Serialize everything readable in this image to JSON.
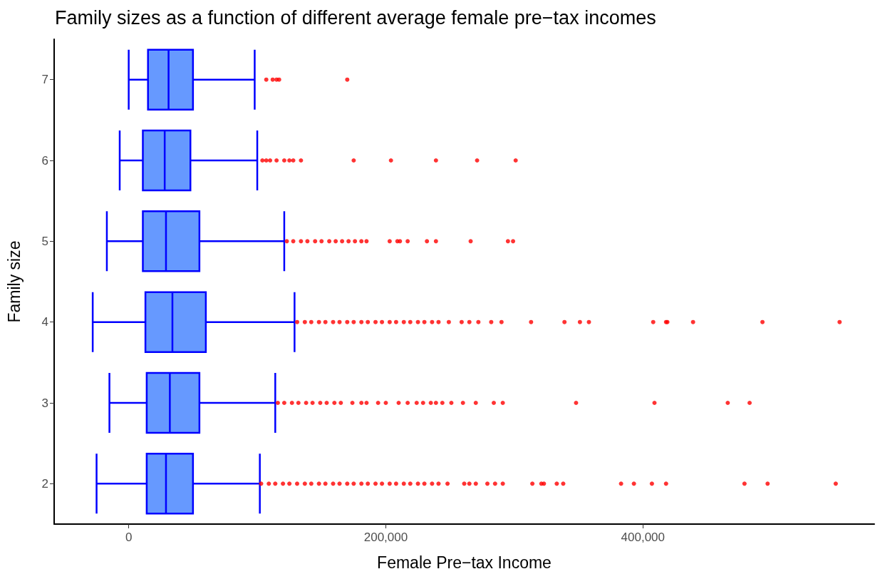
{
  "chart_data": {
    "type": "box",
    "title": "Family sizes as a function of different average female pre−tax incomes",
    "xlabel": "Female Pre−tax Income",
    "ylabel": "Family size",
    "orientation": "horizontal",
    "categories": [
      "7",
      "6",
      "5",
      "4",
      "3",
      "2"
    ],
    "xlim": [
      -58000,
      580000
    ],
    "xticks": [
      0,
      {
        "value": 200000,
        "label": "200,000"
      },
      {
        "value": 400000,
        "label": "400,000"
      }
    ],
    "grid": false,
    "marker": "circle",
    "series": [
      {
        "color": "#0000ff",
        "colors": [
          "#6699ff",
          "#6699ff",
          "#6699ff",
          "#6699ff",
          "#6699ff",
          "#6699ff"
        ],
        "boxes": [
          {
            "low": 0,
            "q1": 15000,
            "median": 31000,
            "q3": 50000,
            "high": 98000,
            "outliers": [
              107000,
              112000,
              115000,
              117000,
              170000
            ]
          },
          {
            "low": -7000,
            "q1": 11000,
            "median": 28000,
            "q3": 48000,
            "high": 100000,
            "outliers": [
              104000,
              107000,
              110000,
              115000,
              121000,
              125000,
              128000,
              134000,
              175000,
              204000,
              239000,
              271000,
              301000
            ]
          },
          {
            "low": -17000,
            "q1": 11000,
            "median": 29000,
            "q3": 55000,
            "high": 121000,
            "outliers": [
              123000,
              128000,
              134000,
              139000,
              145000,
              150000,
              156000,
              161000,
              166000,
              171000,
              176000,
              181000,
              185000,
              203000,
              209000,
              211000,
              217000,
              232000,
              239000,
              266000,
              295000,
              299000
            ]
          },
          {
            "low": -28000,
            "q1": 13000,
            "median": 34000,
            "q3": 60000,
            "high": 129000,
            "outliers": [
              131000,
              137000,
              142000,
              148000,
              153000,
              159000,
              164000,
              170000,
              175000,
              181000,
              186000,
              192000,
              197000,
              203000,
              208000,
              214000,
              219000,
              225000,
              230000,
              236000,
              241000,
              249000,
              259000,
              265000,
              272000,
              282000,
              290000,
              313000,
              339000,
              351000,
              358000,
              408000,
              418000,
              419000,
              439000,
              493000,
              553000
            ]
          },
          {
            "low": -15000,
            "q1": 14000,
            "median": 32000,
            "q3": 55000,
            "high": 114000,
            "outliers": [
              116000,
              121000,
              127000,
              132000,
              138000,
              143000,
              149000,
              154000,
              160000,
              165000,
              174000,
              181000,
              185000,
              194000,
              200000,
              210000,
              217000,
              224000,
              229000,
              235000,
              239000,
              244000,
              251000,
              260000,
              270000,
              284000,
              291000,
              348000,
              409000,
              466000,
              483000
            ]
          },
          {
            "low": -25000,
            "q1": 14000,
            "median": 29000,
            "q3": 50000,
            "high": 102000,
            "outliers": [
              103000,
              109000,
              114000,
              120000,
              125000,
              131000,
              137000,
              142000,
              148000,
              153000,
              159000,
              164000,
              170000,
              175000,
              181000,
              186000,
              192000,
              197000,
              203000,
              208000,
              214000,
              219000,
              225000,
              230000,
              236000,
              241000,
              248000,
              261000,
              265000,
              270000,
              279000,
              285000,
              291000,
              314000,
              321000,
              323000,
              333000,
              338000,
              383000,
              393000,
              407000,
              418000,
              479000,
              497000,
              550000
            ]
          }
        ]
      }
    ]
  }
}
